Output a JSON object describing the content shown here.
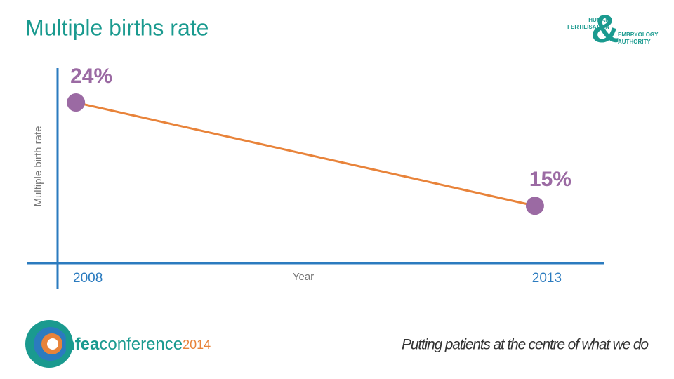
{
  "chart_data": {
    "type": "line",
    "title": "Multiple births rate",
    "x": [
      2008,
      2013
    ],
    "values": [
      24,
      15
    ],
    "value_labels": [
      "24%",
      "15%"
    ],
    "xlabel": "Year",
    "ylabel": "Multiple birth rate",
    "xlim": [
      2007.8,
      2013.75
    ],
    "xticks": [
      2008,
      2013
    ],
    "ylim": [
      10,
      27
    ],
    "color": "#e8833a",
    "marker_color": "#9b6aa3",
    "grid": false
  },
  "authority_logo": {
    "line1": "HUMAN",
    "line2": "FERTILISATION",
    "amp": "&",
    "line3": "EMBRYOLOGY",
    "line4": "AUTHORITY"
  },
  "conference_logo": {
    "brand": "hfea",
    "word": "conference",
    "year": "2014"
  },
  "tagline": "Putting patients at the centre of what we do"
}
